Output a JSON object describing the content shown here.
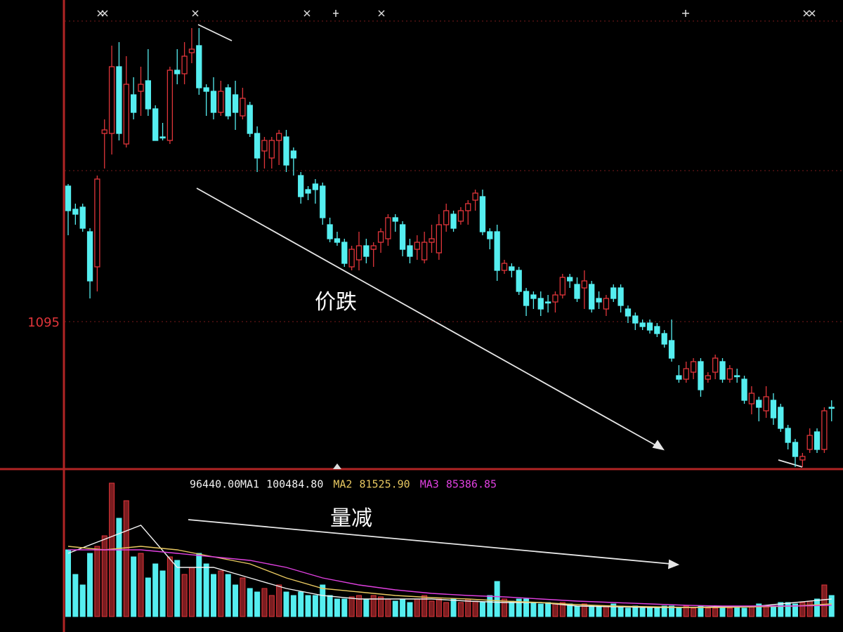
{
  "chart_data": [
    {
      "type": "candlestick",
      "annotation": "价跌",
      "up_color": "#e0353a",
      "down_color": "#55eef0",
      "ylim": [
        1074,
        1138.8
      ],
      "yticks": [
        1095
      ],
      "grid": true,
      "ohlc": [
        [
          1114.3,
          1114.6,
          1107.3,
          1110.8
        ],
        [
          1111.0,
          1111.8,
          1108.8,
          1110.3
        ],
        [
          1111.3,
          1111.8,
          1107.8,
          1108.3
        ],
        [
          1107.8,
          1108.3,
          1098.3,
          1100.8
        ],
        [
          1102.8,
          1115.8,
          1099.3,
          1115.3
        ],
        [
          1121.8,
          1123.8,
          1116.8,
          1122.3
        ],
        [
          1121.8,
          1134.3,
          1118.8,
          1131.3
        ],
        [
          1131.3,
          1134.8,
          1120.8,
          1121.8
        ],
        [
          1120.3,
          1132.8,
          1119.8,
          1128.8
        ],
        [
          1127.3,
          1129.8,
          1123.8,
          1124.8
        ],
        [
          1127.8,
          1131.3,
          1124.3,
          1128.8
        ],
        [
          1129.3,
          1133.8,
          1124.3,
          1125.3
        ],
        [
          1125.3,
          1125.8,
          1120.8,
          1120.8
        ],
        [
          1121.3,
          1123.3,
          1120.8,
          1121.3
        ],
        [
          1120.8,
          1131.3,
          1120.3,
          1130.8
        ],
        [
          1130.8,
          1133.8,
          1128.8,
          1130.3
        ],
        [
          1130.3,
          1134.8,
          1128.8,
          1132.8
        ],
        [
          1133.3,
          1136.8,
          1131.8,
          1133.8
        ],
        [
          1134.3,
          1136.8,
          1127.3,
          1128.3
        ],
        [
          1128.3,
          1128.8,
          1124.3,
          1127.8
        ],
        [
          1127.8,
          1129.8,
          1123.8,
          1124.8
        ],
        [
          1124.8,
          1129.3,
          1124.3,
          1127.8
        ],
        [
          1128.3,
          1128.8,
          1123.8,
          1124.3
        ],
        [
          1127.3,
          1129.3,
          1122.3,
          1124.8
        ],
        [
          1124.3,
          1128.3,
          1123.8,
          1126.8
        ],
        [
          1125.8,
          1126.3,
          1121.3,
          1121.8
        ],
        [
          1121.8,
          1122.8,
          1116.3,
          1118.3
        ],
        [
          1119.3,
          1121.3,
          1116.8,
          1120.8
        ],
        [
          1118.3,
          1121.3,
          1116.8,
          1120.8
        ],
        [
          1120.8,
          1122.3,
          1117.3,
          1121.8
        ],
        [
          1121.3,
          1122.3,
          1116.3,
          1117.3
        ],
        [
          1119.3,
          1119.8,
          1115.8,
          1118.3
        ],
        [
          1115.8,
          1116.3,
          1111.8,
          1112.8
        ],
        [
          1113.8,
          1114.3,
          1112.3,
          1113.3
        ],
        [
          1114.6,
          1115.3,
          1111.8,
          1113.8
        ],
        [
          1114.3,
          1114.8,
          1108.8,
          1109.8
        ],
        [
          1108.8,
          1109.8,
          1106.3,
          1106.8
        ],
        [
          1106.8,
          1107.8,
          1105.8,
          1106.3
        ],
        [
          1106.3,
          1106.8,
          1102.8,
          1103.3
        ],
        [
          1102.8,
          1105.8,
          1102.3,
          1105.3
        ],
        [
          1103.8,
          1107.8,
          1102.3,
          1105.8
        ],
        [
          1105.8,
          1106.8,
          1103.3,
          1104.3
        ],
        [
          1105.3,
          1106.3,
          1102.8,
          1105.8
        ],
        [
          1106.3,
          1108.3,
          1104.8,
          1107.8
        ],
        [
          1106.8,
          1110.3,
          1105.8,
          1109.8
        ],
        [
          1109.8,
          1110.3,
          1107.8,
          1109.3
        ],
        [
          1108.8,
          1109.3,
          1104.3,
          1105.3
        ],
        [
          1105.8,
          1106.8,
          1103.3,
          1104.3
        ],
        [
          1105.3,
          1107.3,
          1103.8,
          1106.3
        ],
        [
          1103.8,
          1107.8,
          1103.3,
          1106.3
        ],
        [
          1106.3,
          1108.8,
          1104.8,
          1106.8
        ],
        [
          1104.8,
          1110.3,
          1103.8,
          1108.8
        ],
        [
          1108.8,
          1111.8,
          1107.8,
          1110.8
        ],
        [
          1110.3,
          1110.8,
          1107.8,
          1108.3
        ],
        [
          1109.3,
          1111.3,
          1108.8,
          1110.8
        ],
        [
          1110.8,
          1112.3,
          1108.8,
          1111.8
        ],
        [
          1112.3,
          1113.8,
          1110.8,
          1113.3
        ],
        [
          1112.8,
          1113.8,
          1107.3,
          1107.8
        ],
        [
          1107.8,
          1108.3,
          1105.3,
          1106.8
        ],
        [
          1107.8,
          1108.8,
          1100.8,
          1102.3
        ],
        [
          1102.3,
          1103.8,
          1101.8,
          1103.3
        ],
        [
          1102.8,
          1103.3,
          1101.3,
          1102.3
        ],
        [
          1102.3,
          1102.8,
          1098.8,
          1099.3
        ],
        [
          1099.3,
          1099.8,
          1095.8,
          1097.3
        ],
        [
          1098.8,
          1099.3,
          1096.8,
          1098.3
        ],
        [
          1098.3,
          1099.3,
          1095.8,
          1096.8
        ],
        [
          1097.8,
          1098.8,
          1096.3,
          1097.8
        ],
        [
          1097.8,
          1099.3,
          1096.3,
          1098.8
        ],
        [
          1098.8,
          1101.8,
          1098.3,
          1101.3
        ],
        [
          1101.3,
          1101.8,
          1099.8,
          1100.8
        ],
        [
          1100.3,
          1101.3,
          1097.8,
          1098.3
        ],
        [
          1099.8,
          1102.3,
          1096.8,
          1100.8
        ],
        [
          1100.3,
          1100.8,
          1096.3,
          1096.8
        ],
        [
          1098.3,
          1099.3,
          1096.8,
          1097.8
        ],
        [
          1096.8,
          1098.8,
          1095.8,
          1098.3
        ],
        [
          1099.8,
          1100.3,
          1097.8,
          1098.3
        ],
        [
          1099.8,
          1100.3,
          1096.3,
          1097.3
        ],
        [
          1096.8,
          1097.3,
          1094.8,
          1095.8
        ],
        [
          1095.8,
          1096.3,
          1093.8,
          1094.8
        ],
        [
          1094.8,
          1095.3,
          1093.8,
          1094.3
        ],
        [
          1094.8,
          1095.3,
          1093.3,
          1093.8
        ],
        [
          1094.3,
          1094.8,
          1092.8,
          1093.3
        ],
        [
          1093.3,
          1093.8,
          1091.3,
          1091.8
        ],
        [
          1092.3,
          1095.3,
          1089.3,
          1089.8
        ],
        [
          1087.3,
          1088.8,
          1086.3,
          1086.8
        ],
        [
          1086.8,
          1089.3,
          1086.3,
          1088.3
        ],
        [
          1087.8,
          1089.8,
          1086.8,
          1089.3
        ],
        [
          1089.3,
          1089.8,
          1084.3,
          1085.3
        ],
        [
          1086.8,
          1087.8,
          1086.3,
          1087.3
        ],
        [
          1087.8,
          1090.3,
          1086.8,
          1089.8
        ],
        [
          1089.3,
          1089.8,
          1086.3,
          1086.8
        ],
        [
          1086.8,
          1088.8,
          1086.3,
          1088.3
        ],
        [
          1087.3,
          1088.3,
          1086.3,
          1087.3
        ],
        [
          1086.8,
          1087.3,
          1083.3,
          1083.8
        ],
        [
          1083.3,
          1085.8,
          1081.8,
          1084.8
        ],
        [
          1083.8,
          1084.3,
          1080.8,
          1082.8
        ],
        [
          1082.3,
          1085.8,
          1081.3,
          1084.3
        ],
        [
          1083.8,
          1084.8,
          1080.3,
          1081.3
        ],
        [
          1082.8,
          1083.3,
          1079.3,
          1079.8
        ],
        [
          1079.8,
          1080.3,
          1076.8,
          1077.8
        ],
        [
          1077.8,
          1078.3,
          1074.3,
          1075.8
        ],
        [
          1075.3,
          1076.3,
          1074.3,
          1075.8
        ],
        [
          1076.8,
          1079.8,
          1076.3,
          1078.8
        ],
        [
          1079.3,
          1079.8,
          1076.3,
          1076.8
        ],
        [
          1076.8,
          1082.8,
          1076.3,
          1082.3
        ],
        [
          1082.8,
          1083.8,
          1080.8,
          1082.8
        ]
      ]
    },
    {
      "type": "bar",
      "annotation": "量减",
      "ylim": [
        0,
        390000
      ],
      "legend_value": {
        "value": 96440,
        "label": "96440.00"
      },
      "values": [
        190000,
        120000,
        90000,
        180000,
        200000,
        230000,
        380000,
        280000,
        330000,
        170000,
        180000,
        110000,
        150000,
        130000,
        170000,
        160000,
        120000,
        140000,
        180000,
        150000,
        120000,
        130000,
        120000,
        90000,
        110000,
        80000,
        70000,
        80000,
        60000,
        90000,
        70000,
        60000,
        70000,
        60000,
        60000,
        90000,
        60000,
        50000,
        50000,
        56000,
        60000,
        50000,
        60000,
        56000,
        50000,
        44000,
        50000,
        40000,
        50000,
        60000,
        44000,
        50000,
        40000,
        50000,
        40000,
        50000,
        44000,
        40000,
        60000,
        100000,
        50000,
        44000,
        50000,
        50000,
        40000,
        36000,
        40000,
        36000,
        40000,
        36000,
        30000,
        36000,
        30000,
        30000,
        30000,
        36000,
        30000,
        24000,
        30000,
        24000,
        24000,
        24000,
        30000,
        30000,
        24000,
        30000,
        24000,
        30000,
        24000,
        24000,
        30000,
        24000,
        30000,
        24000,
        30000,
        36000,
        30000,
        30000,
        40000,
        40000,
        36000,
        40000,
        44000,
        50000,
        90000,
        60000
      ],
      "ma_x": [
        0,
        5,
        10,
        15,
        20,
        25,
        30,
        35,
        40,
        45,
        50,
        55,
        60,
        65,
        70,
        75,
        80,
        85,
        90,
        95,
        100,
        105
      ],
      "series": [
        {
          "name": "MA1",
          "color": "#f2f2f2",
          "label_value": {
            "value": 100484.8,
            "label": "100484.80"
          },
          "values": [
            180000,
            220000,
            260000,
            140000,
            140000,
            110000,
            80000,
            60000,
            50000,
            50000,
            50000,
            44000,
            40000,
            40000,
            30000,
            28000,
            26000,
            26000,
            28000,
            30000,
            40000,
            50000
          ]
        },
        {
          "name": "MA2",
          "color": "#e8c860",
          "label_value": {
            "value": 81525.9,
            "label": "81525.90"
          },
          "values": [
            200000,
            190000,
            200000,
            190000,
            170000,
            150000,
            110000,
            80000,
            70000,
            60000,
            54000,
            50000,
            44000,
            40000,
            34000,
            30000,
            28000,
            26000,
            26000,
            28000,
            30000,
            36000
          ]
        },
        {
          "name": "MA3",
          "color": "#e040e0",
          "label_value": {
            "value": 85386.85,
            "label": "85386.85"
          },
          "values": [
            190000,
            190000,
            190000,
            180000,
            170000,
            160000,
            140000,
            110000,
            90000,
            76000,
            66000,
            60000,
            56000,
            50000,
            44000,
            40000,
            36000,
            32000,
            30000,
            30000,
            30000,
            32000
          ]
        }
      ]
    }
  ]
}
